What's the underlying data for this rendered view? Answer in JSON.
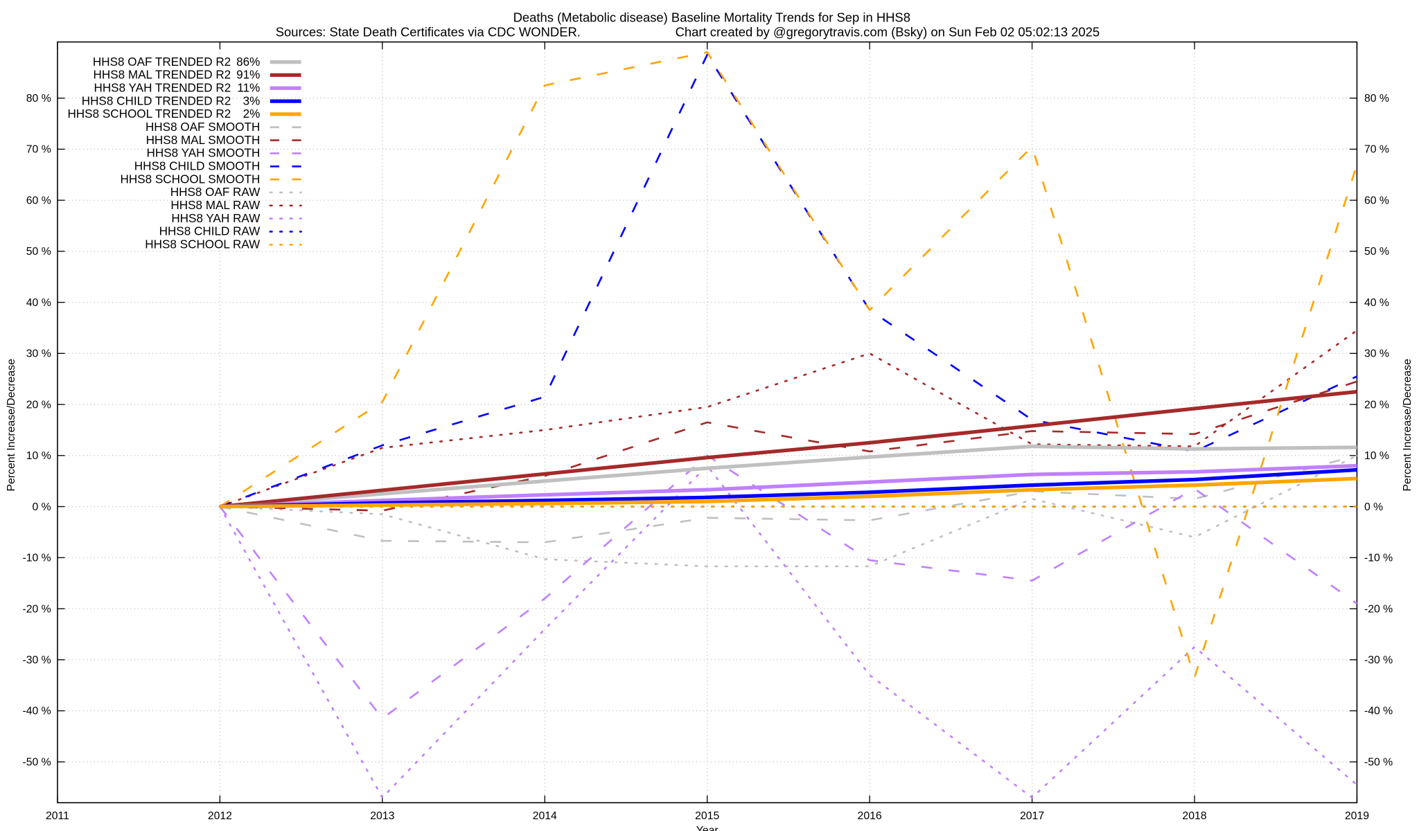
{
  "chart_data": {
    "type": "line",
    "title": "Deaths (Metabolic disease)  Baseline Mortality Trends for Sep in HHS8",
    "subtitle_left": "Sources: State Death Certificates via CDC WONDER.",
    "subtitle_right": "Chart created by @gregorytravis.com (Bsky) on Sun Feb 02 05:02:13 2025",
    "xlabel": "Year",
    "ylabel": "Percent Increase/Decrease",
    "xlim": [
      2011,
      2019
    ],
    "ylim": [
      -58,
      91
    ],
    "x_ticks": [
      "2011",
      "2012",
      "2013",
      "2014",
      "2015",
      "2016",
      "2017",
      "2018",
      "2019"
    ],
    "y_ticks": [
      80,
      70,
      60,
      50,
      40,
      30,
      20,
      10,
      0,
      -10,
      -20,
      -30,
      -40,
      -50
    ],
    "y_tick_suffix": " %",
    "grid": true,
    "legend_position": "top-left",
    "x": [
      2012,
      2013,
      2014,
      2015,
      2016,
      2017,
      2018,
      2019
    ],
    "series": [
      {
        "name": "HHS8 OAF TRENDED R2",
        "r2": "86%",
        "style": "solid",
        "color": "#c0c0c0",
        "values": [
          0,
          2.5,
          5,
          7.5,
          9.7,
          11.8,
          11.3,
          11.6
        ]
      },
      {
        "name": "HHS8 MAL TRENDED R2",
        "r2": "91%",
        "style": "solid",
        "color": "#a52a2a",
        "values": [
          0,
          3.2,
          6.4,
          9.6,
          12.5,
          15.8,
          19.2,
          22.5
        ]
      },
      {
        "name": "HHS8 YAH TRENDED R2",
        "r2": "11%",
        "style": "solid",
        "color": "#c080ff",
        "values": [
          0,
          1.2,
          2.3,
          3.3,
          4.8,
          6.3,
          6.8,
          8
        ]
      },
      {
        "name": "HHS8 CHILD TRENDED R2",
        "r2": "3%",
        "style": "solid",
        "color": "#0000ff",
        "values": [
          0,
          0.7,
          1.2,
          1.8,
          2.8,
          4.2,
          5.3,
          7.2
        ]
      },
      {
        "name": "HHS8 SCHOOL TRENDED R2",
        "r2": "2%",
        "style": "solid",
        "color": "#ffa500",
        "values": [
          0,
          0.3,
          0.6,
          1,
          2,
          3.3,
          4.2,
          5.5
        ]
      },
      {
        "name": "HHS8 OAF SMOOTH",
        "r2": "",
        "style": "dash",
        "color": "#c0c0c0",
        "values": [
          0,
          -6.7,
          -7,
          -2.2,
          -2.7,
          3,
          1.5,
          10
        ]
      },
      {
        "name": "HHS8 MAL SMOOTH",
        "r2": "",
        "style": "dash",
        "color": "#a52a2a",
        "values": [
          0,
          -0.8,
          6,
          16.5,
          10.8,
          14.8,
          14.2,
          24.5
        ]
      },
      {
        "name": "HHS8 YAH SMOOTH",
        "r2": "",
        "style": "dash",
        "color": "#c080ff",
        "values": [
          0,
          -41.5,
          -18,
          10,
          -10.5,
          -14.5,
          3.5,
          -19
        ]
      },
      {
        "name": "HHS8 CHILD SMOOTH",
        "r2": "",
        "style": "dash",
        "color": "#0000ff",
        "values": [
          0,
          12,
          21.5,
          88.5,
          38.5,
          17,
          10.8,
          25.5
        ]
      },
      {
        "name": "HHS8 SCHOOL SMOOTH",
        "r2": "",
        "style": "dash",
        "color": "#ffa500",
        "values": [
          0,
          20.5,
          82.5,
          89,
          38.5,
          70.5,
          -33.5,
          67
        ]
      },
      {
        "name": "HHS8 OAF RAW",
        "r2": "",
        "style": "dot",
        "color": "#c0c0c0",
        "values": [
          0,
          -1.5,
          -10.3,
          -11.7,
          -11.7,
          1.5,
          -6,
          10
        ]
      },
      {
        "name": "HHS8 MAL RAW",
        "r2": "",
        "style": "dot",
        "color": "#a52a2a",
        "values": [
          0,
          11.5,
          15,
          19.5,
          30,
          12.2,
          11.8,
          34.5
        ]
      },
      {
        "name": "HHS8 YAH RAW",
        "r2": "",
        "style": "dot",
        "color": "#c080ff",
        "values": [
          0,
          -57,
          -24,
          8,
          -33,
          -57,
          -27.5,
          -54.5
        ]
      },
      {
        "name": "HHS8 CHILD RAW",
        "r2": "",
        "style": "dot",
        "color": "#0000ff",
        "values": [
          0,
          0,
          0,
          0,
          0,
          0,
          0,
          0
        ]
      },
      {
        "name": "HHS8 SCHOOL RAW",
        "r2": "",
        "style": "dot",
        "color": "#ffa500",
        "values": [
          0,
          0,
          0,
          0,
          0,
          0,
          0,
          0
        ]
      }
    ]
  }
}
